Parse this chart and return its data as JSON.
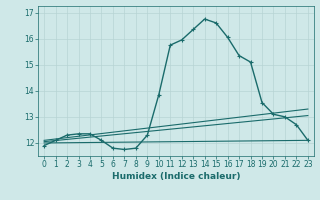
{
  "xlabel": "Humidex (Indice chaleur)",
  "xlim": [
    -0.5,
    23.5
  ],
  "ylim": [
    11.5,
    17.25
  ],
  "yticks": [
    12,
    13,
    14,
    15,
    16,
    17
  ],
  "xticks": [
    0,
    1,
    2,
    3,
    4,
    5,
    6,
    7,
    8,
    9,
    10,
    11,
    12,
    13,
    14,
    15,
    16,
    17,
    18,
    19,
    20,
    21,
    22,
    23
  ],
  "bg_color": "#cfe8e8",
  "line_color": "#1a6b6b",
  "grid_color": "#b8d4d4",
  "lines": [
    {
      "x": [
        0,
        1,
        2,
        3,
        4,
        5,
        6,
        7,
        8,
        9,
        10,
        11,
        12,
        13,
        14,
        15,
        16,
        17,
        18,
        19,
        20,
        21,
        22,
        23
      ],
      "y": [
        11.9,
        12.1,
        12.3,
        12.35,
        12.35,
        12.1,
        11.8,
        11.75,
        11.8,
        12.3,
        13.85,
        15.75,
        15.95,
        16.35,
        16.75,
        16.6,
        16.05,
        15.35,
        15.1,
        13.55,
        13.1,
        13.0,
        12.7,
        12.1
      ],
      "marker": "+",
      "markersize": 3.0,
      "linewidth": 1.0
    },
    {
      "x": [
        0,
        23
      ],
      "y": [
        12.0,
        12.1
      ],
      "marker": null,
      "linewidth": 0.8
    },
    {
      "x": [
        0,
        23
      ],
      "y": [
        12.05,
        13.05
      ],
      "marker": null,
      "linewidth": 0.8
    },
    {
      "x": [
        0,
        23
      ],
      "y": [
        12.1,
        13.3
      ],
      "marker": null,
      "linewidth": 0.8
    }
  ]
}
